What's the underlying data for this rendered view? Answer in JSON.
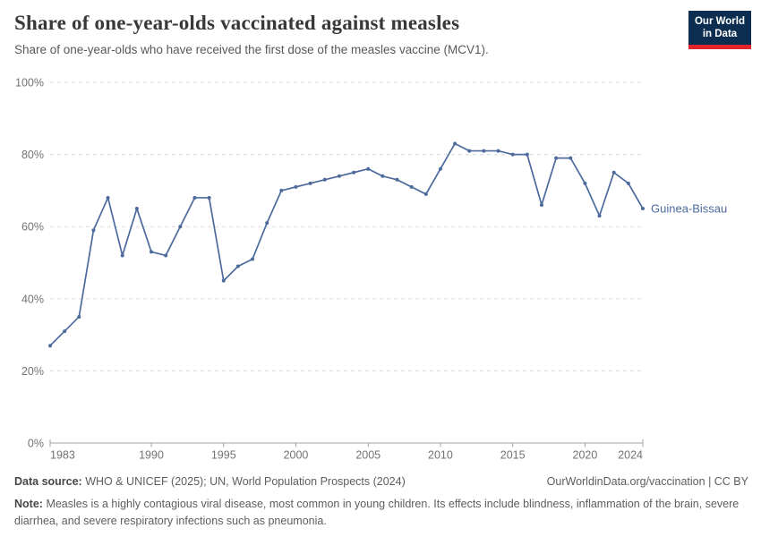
{
  "header": {
    "title": "Share of one-year-olds vaccinated against measles",
    "subtitle": "Share of one-year-olds who have received the first dose of the measles vaccine (MCV1).",
    "logo": {
      "line1": "Our World",
      "line2": "in Data",
      "bg_color": "#0d2e51",
      "accent_color": "#e2242c"
    }
  },
  "chart_data": {
    "type": "line",
    "title": "Share of one-year-olds vaccinated against measles",
    "xlabel": "",
    "ylabel": "",
    "xlim": [
      1983,
      2024
    ],
    "ylim": [
      0,
      100
    ],
    "x_ticks": [
      1983,
      1990,
      1995,
      2000,
      2005,
      2010,
      2015,
      2020,
      2024
    ],
    "y_ticks": [
      0,
      20,
      40,
      60,
      80,
      100
    ],
    "y_tick_suffix": "%",
    "grid": "horizontal-dashed",
    "legend_position": "line-end-label",
    "line_color": "#4c6a9c",
    "series": [
      {
        "name": "Guinea-Bissau",
        "x": [
          1983,
          1984,
          1985,
          1986,
          1987,
          1988,
          1989,
          1990,
          1991,
          1992,
          1993,
          1994,
          1995,
          1996,
          1997,
          1998,
          1999,
          2000,
          2001,
          2002,
          2003,
          2004,
          2005,
          2006,
          2007,
          2008,
          2009,
          2010,
          2011,
          2012,
          2013,
          2014,
          2015,
          2016,
          2017,
          2018,
          2019,
          2020,
          2021,
          2022,
          2023,
          2024
        ],
        "values": [
          27,
          31,
          35,
          59,
          68,
          52,
          65,
          53,
          52,
          60,
          68,
          68,
          45,
          49,
          51,
          61,
          70,
          71,
          72,
          73,
          74,
          75,
          76,
          74,
          73,
          71,
          69,
          76,
          83,
          81,
          81,
          81,
          80,
          80,
          66,
          79,
          79,
          72,
          63,
          75,
          72,
          65
        ]
      }
    ]
  },
  "footer": {
    "source_label": "Data source:",
    "source_text": "WHO & UNICEF (2025); UN, World Population Prospects (2024)",
    "link_text": "OurWorldinData.org/vaccination | CC BY",
    "note_label": "Note:",
    "note_text": "Measles is a highly contagious viral disease, most common in young children. Its effects include blindness, inflammation of the brain, severe diarrhea, and severe respiratory infections such as pneumonia."
  }
}
